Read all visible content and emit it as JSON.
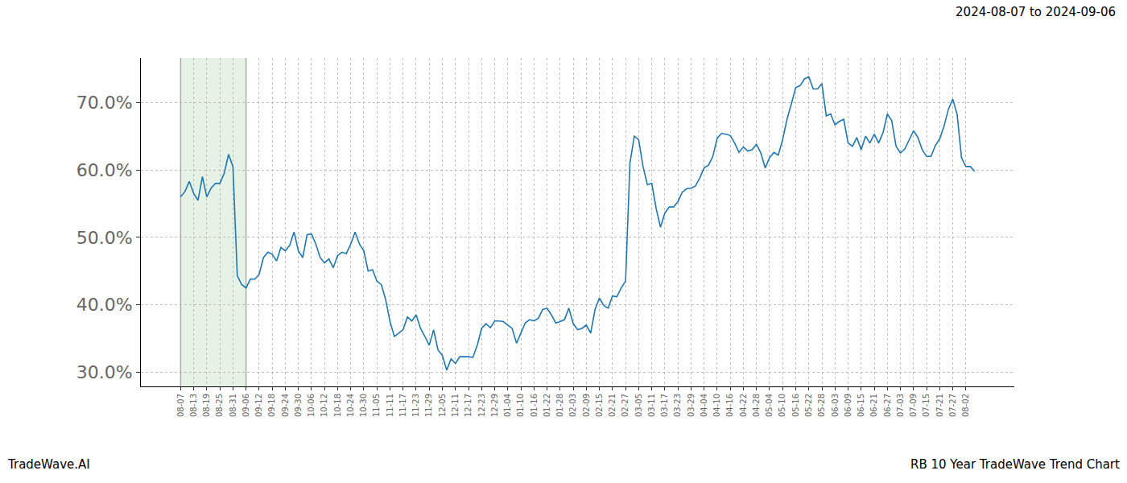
{
  "chart_data": {
    "type": "line",
    "title": "RB 10 Year TradeWave Trend Chart",
    "subtitle": "2024-08-07 to 2024-09-06",
    "annotations": [
      "TradeWave.AI"
    ],
    "highlight": {
      "from": "08-07",
      "to": "09-06"
    },
    "color": "#1f77b4",
    "grid": true,
    "ylim": [
      27.9,
      76.6
    ],
    "yticks": [
      {
        "value": 30,
        "label": "30.0%"
      },
      {
        "value": 40,
        "label": "40.0%"
      },
      {
        "value": 50,
        "label": "50.0%"
      },
      {
        "value": 60,
        "label": "60.0%"
      },
      {
        "value": 70,
        "label": "70.0%"
      }
    ],
    "categories": [
      "08-07",
      null,
      null,
      "08-13",
      null,
      null,
      "08-19",
      null,
      null,
      "08-25",
      null,
      null,
      "08-31",
      null,
      null,
      "09-06",
      null,
      null,
      "09-12",
      null,
      null,
      "09-18",
      null,
      null,
      "09-24",
      null,
      null,
      "09-30",
      null,
      null,
      "10-06",
      null,
      null,
      "10-12",
      null,
      null,
      "10-18",
      null,
      null,
      "10-24",
      null,
      null,
      "10-30",
      null,
      null,
      "11-05",
      null,
      null,
      "11-11",
      null,
      null,
      "11-17",
      null,
      null,
      "11-23",
      null,
      null,
      "11-29",
      null,
      null,
      "12-05",
      null,
      null,
      "12-11",
      null,
      null,
      "12-17",
      null,
      null,
      "12-23",
      null,
      null,
      "12-29",
      null,
      null,
      "01-04",
      null,
      null,
      "01-10",
      null,
      null,
      "01-16",
      null,
      null,
      "01-22",
      null,
      null,
      "01-28",
      null,
      null,
      "02-03",
      null,
      null,
      "02-09",
      null,
      null,
      "02-15",
      null,
      null,
      "02-21",
      null,
      null,
      "02-27",
      null,
      null,
      "03-05",
      null,
      null,
      "03-11",
      null,
      null,
      "03-17",
      null,
      null,
      "03-23",
      null,
      null,
      "03-29",
      null,
      null,
      "04-04",
      null,
      null,
      "04-10",
      null,
      null,
      "04-16",
      null,
      null,
      "04-22",
      null,
      null,
      "04-28",
      null,
      null,
      "05-04",
      null,
      null,
      "05-10",
      null,
      null,
      "05-16",
      null,
      null,
      "05-22",
      null,
      null,
      "05-28",
      null,
      null,
      "06-03",
      null,
      null,
      "06-09",
      null,
      null,
      "06-15",
      null,
      null,
      "06-21",
      null,
      null,
      "06-27",
      null,
      null,
      "07-03",
      null,
      null,
      "07-09",
      null,
      null,
      "07-15",
      null,
      null,
      "07-21",
      null,
      null,
      "07-27",
      null,
      null,
      "08-02",
      null,
      null
    ],
    "values": [
      56.0,
      56.8,
      58.3,
      56.5,
      55.5,
      59.0,
      56.0,
      57.3,
      58.0,
      58.0,
      59.5,
      62.3,
      60.5,
      44.3,
      43.0,
      42.5,
      43.8,
      43.8,
      44.5,
      47.0,
      47.8,
      47.5,
      46.5,
      48.5,
      48.0,
      48.8,
      50.8,
      48.0,
      47.0,
      50.4,
      50.5,
      49.0,
      47.0,
      46.2,
      46.8,
      45.5,
      47.3,
      47.8,
      47.6,
      49.0,
      50.8,
      49.0,
      48.0,
      45.0,
      45.2,
      43.5,
      43.0,
      40.8,
      37.5,
      35.3,
      35.8,
      36.3,
      38.2,
      37.6,
      38.5,
      36.5,
      35.3,
      34.0,
      36.3,
      33.3,
      32.5,
      30.3,
      32.0,
      31.3,
      32.3,
      32.3,
      32.3,
      32.2,
      34.0,
      36.5,
      37.2,
      36.6,
      37.6,
      37.6,
      37.5,
      37.0,
      36.5,
      34.3,
      35.7,
      37.3,
      37.8,
      37.6,
      38.0,
      39.3,
      39.5,
      38.5,
      37.3,
      37.5,
      37.8,
      39.5,
      37.2,
      36.3,
      36.5,
      37.0,
      35.8,
      39.3,
      41.0,
      39.9,
      39.5,
      41.3,
      41.2,
      42.5,
      43.5,
      61.0,
      65.0,
      64.5,
      60.5,
      57.8,
      58.0,
      54.3,
      51.5,
      53.6,
      54.5,
      54.5,
      55.3,
      56.7,
      57.2,
      57.3,
      57.6,
      58.8,
      60.3,
      60.7,
      62.0,
      64.7,
      65.4,
      65.3,
      65.1,
      64.0,
      62.6,
      63.4,
      62.8,
      63.0,
      63.8,
      62.5,
      60.3,
      61.8,
      62.6,
      62.2,
      64.5,
      67.5,
      69.8,
      72.2,
      72.5,
      73.5,
      73.8,
      72.0,
      72.0,
      72.8,
      68.0,
      68.3,
      66.7,
      67.2,
      67.5,
      64.0,
      63.5,
      64.8,
      63.0,
      65.0,
      64.0,
      65.3,
      64.0,
      65.5,
      68.3,
      67.3,
      63.5,
      62.5,
      63.1,
      64.5,
      65.8,
      64.8,
      63.0,
      62.0,
      62.0,
      63.6,
      64.6,
      66.5,
      69.0,
      70.5,
      68.2,
      61.8,
      60.5,
      60.5,
      59.8
    ]
  }
}
